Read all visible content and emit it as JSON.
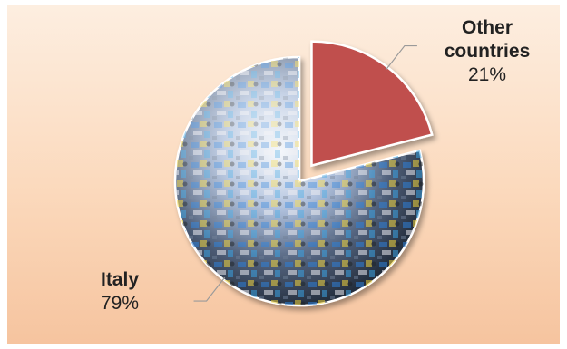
{
  "chart_data": {
    "type": "pie",
    "title": "",
    "slices": [
      {
        "label": "Italy",
        "value": 79,
        "value_label": "79%",
        "color": "#8fa6c8"
      },
      {
        "label": "Other countries",
        "value": 21,
        "value_label": "21%",
        "color": "#c0504d",
        "exploded": true
      }
    ],
    "legend": "none",
    "data_labels": "outside-with-leader-lines"
  }
}
